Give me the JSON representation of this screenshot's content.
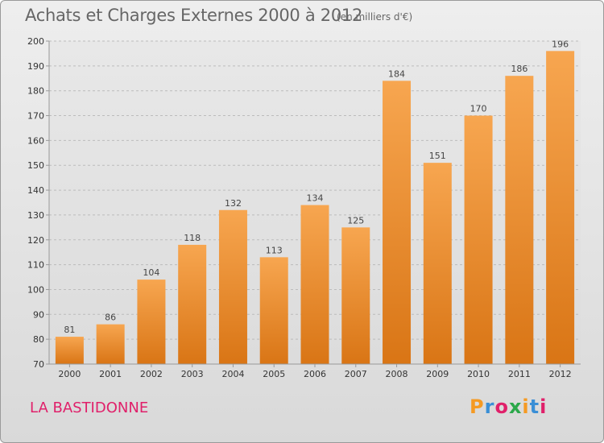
{
  "header": {
    "title": "Achats et Charges Externes 2000 à 2012",
    "unit": "(en milliers d'€)"
  },
  "footer": {
    "commune": "LA BASTIDONNE",
    "logo": {
      "text": "Proxiti",
      "colors": [
        "#f59a23",
        "#3a8fd6",
        "#e0206a",
        "#2ba84a",
        "#f59a23",
        "#3a8fd6",
        "#e0206a"
      ]
    }
  },
  "colors": {
    "bar_light": "#f7a650",
    "bar_dark": "#d97515",
    "grid": "#bcbcbc"
  },
  "chart_data": {
    "type": "bar",
    "title": "Achats et Charges Externes 2000 à 2012",
    "subtitle": "(en milliers d'€)",
    "categories": [
      "2000",
      "2001",
      "2002",
      "2003",
      "2004",
      "2005",
      "2006",
      "2007",
      "2008",
      "2009",
      "2010",
      "2011",
      "2012"
    ],
    "values": [
      81,
      86,
      104,
      118,
      132,
      113,
      134,
      125,
      184,
      151,
      170,
      186,
      196
    ],
    "ylim": [
      70,
      200
    ],
    "yticks": [
      70,
      80,
      90,
      100,
      110,
      120,
      130,
      140,
      150,
      160,
      170,
      180,
      190,
      200
    ],
    "grid": true,
    "legend": "none"
  }
}
